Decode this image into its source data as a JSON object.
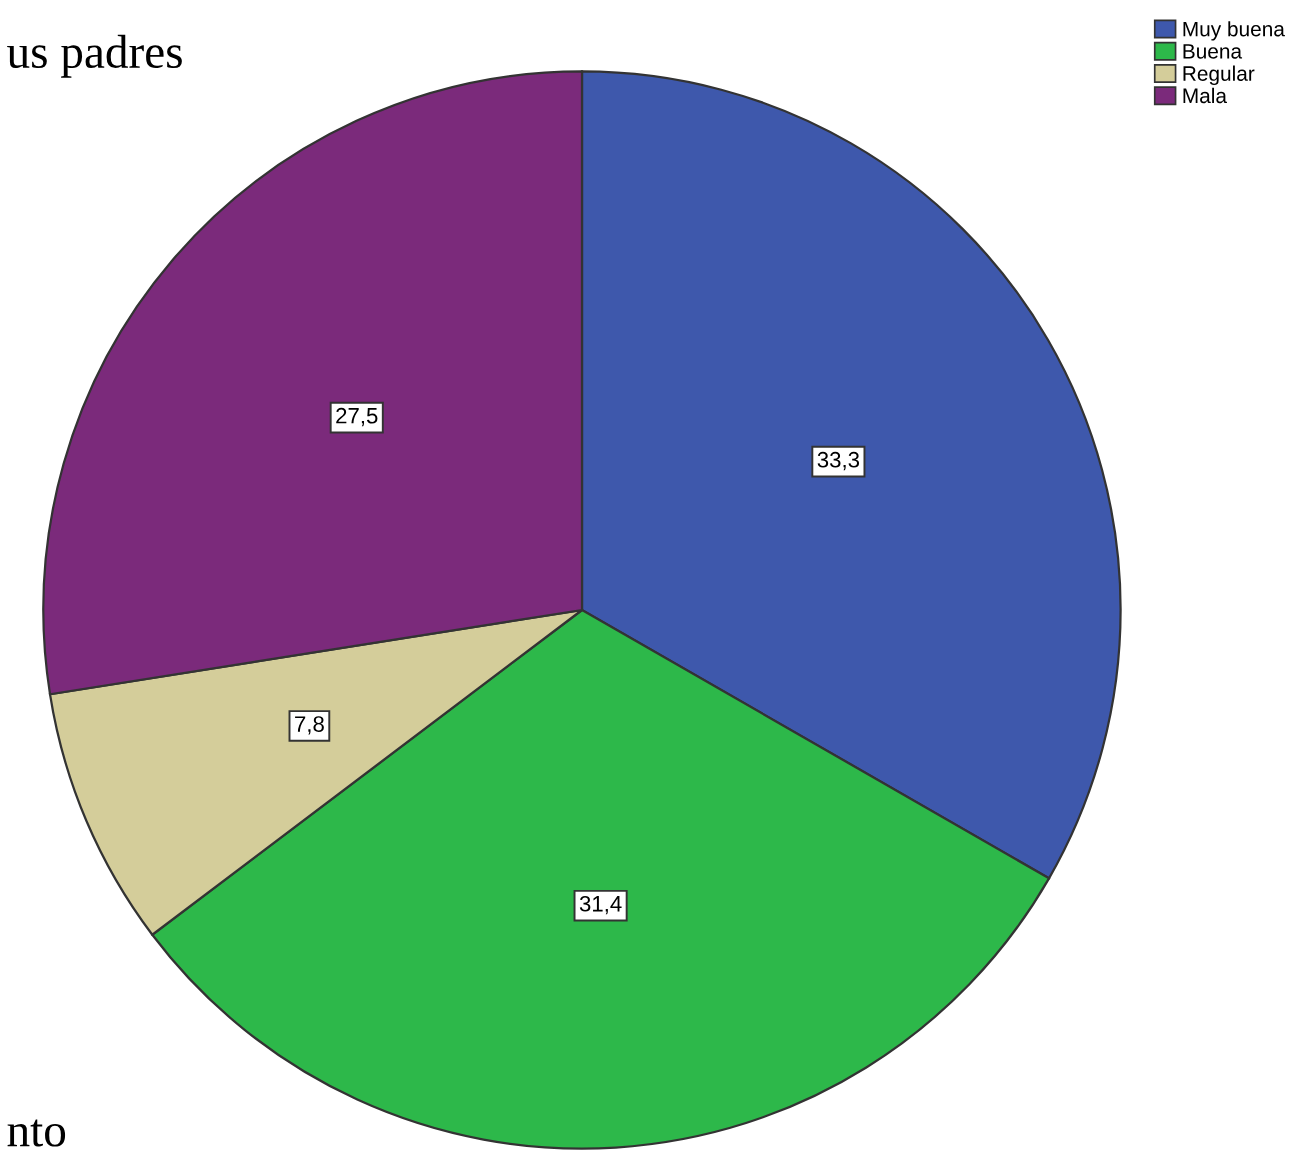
{
  "chart_data": {
    "type": "pie",
    "categories": [
      "Muy buena",
      "Buena",
      "Regular",
      "Mala"
    ],
    "values": [
      33.3,
      31.4,
      7.8,
      27.5
    ],
    "value_labels": [
      "33,3",
      "31,4",
      "7,8",
      "27,5"
    ],
    "colors": [
      "#3e58ac",
      "#2db84a",
      "#d4cd9a",
      "#7b2a7b"
    ],
    "legend": "top right",
    "annotations": [
      "us padres",
      "nto"
    ]
  }
}
